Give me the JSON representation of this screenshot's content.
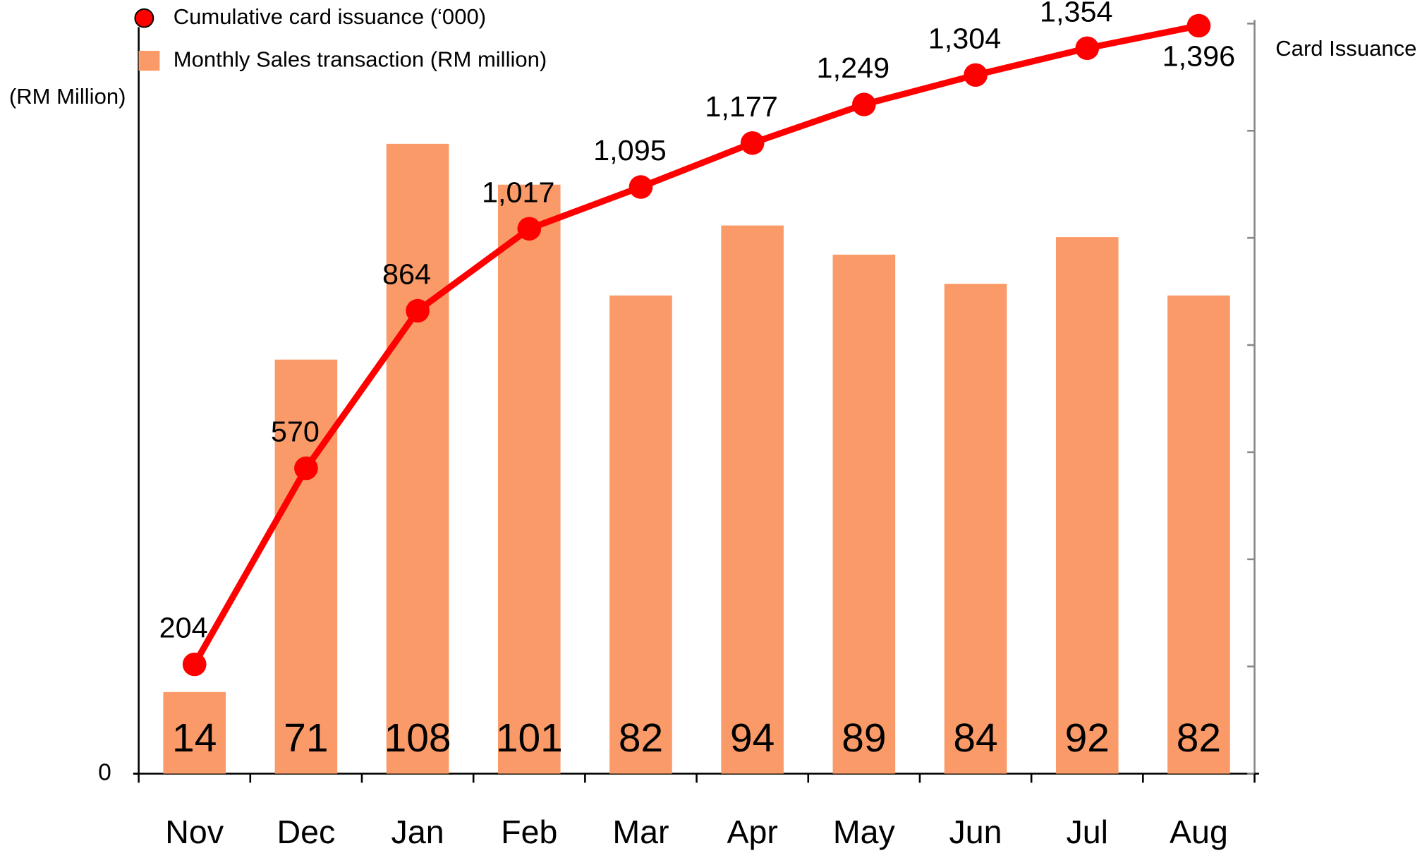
{
  "chart_data": {
    "type": "bar-line",
    "y_label": "(RM Million)",
    "y2_label": "Card Issuance",
    "categories": [
      "Nov",
      "Dec",
      "Jan",
      "Feb",
      "Mar",
      "Apr",
      "May",
      "Jun",
      "Jul",
      "Aug"
    ],
    "series": [
      {
        "name": "Monthly Sales transaction (RM million)",
        "kind": "bar",
        "color": "#fa9a68",
        "axis": "y",
        "values": [
          14,
          71,
          108,
          101,
          82,
          94,
          89,
          84,
          92,
          82
        ]
      },
      {
        "name": "Cumulative card issuance (‘000)",
        "kind": "line",
        "color": "#ff0000",
        "axis": "y2",
        "values": [
          204,
          570,
          864,
          1017,
          1095,
          1177,
          1249,
          1304,
          1354,
          1396
        ],
        "value_labels": [
          "204",
          "570",
          "864",
          "1,017",
          "1,095",
          "1,177",
          "1,249",
          "1,304",
          "1,354",
          "1,396"
        ]
      }
    ],
    "ylim": [
      0,
      128
    ],
    "yticks": [
      0
    ],
    "y2lim": [
      0,
      1400
    ],
    "y2ticks": [
      0,
      200,
      400,
      600,
      800,
      1000,
      1200,
      1400
    ],
    "legend": "top-left",
    "grid": false
  }
}
